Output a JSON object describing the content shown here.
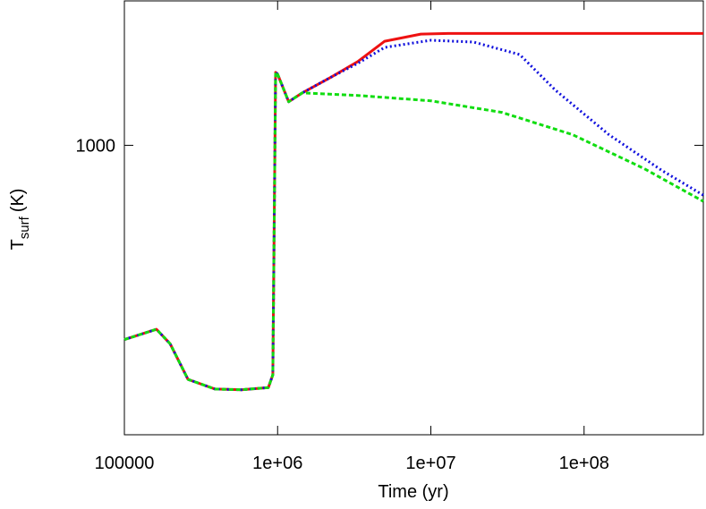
{
  "chart_data": {
    "type": "line",
    "xlabel": "Time (yr)",
    "ylabel_main": "T",
    "ylabel_sub": "surf",
    "ylabel_unit": "(K)",
    "xlog": true,
    "ylog": true,
    "xlim": [
      100000,
      600000000
    ],
    "ylim": [
      190,
      2290
    ],
    "xticks": [
      100000,
      {
        "value": 1000000,
        "label": "1e+06"
      },
      {
        "value": 10000000,
        "label": "1e+07"
      },
      {
        "value": 100000000,
        "label": "1e+08"
      }
    ],
    "yticks": [
      1000
    ],
    "series": [
      {
        "color": "#ee1111",
        "dash": "none",
        "x": [
          100000,
          162000,
          199000,
          260000,
          390000,
          580000,
          870000,
          930000,
          970000,
          1000000,
          1180000,
          1450000,
          2250000,
          3330000,
          5000000,
          8600000,
          13000000,
          600000000
        ],
        "values": [
          328,
          348,
          320,
          261,
          247,
          246,
          249,
          268,
          1520,
          1505,
          1284,
          1351,
          1481,
          1616,
          1817,
          1893,
          1900,
          1900
        ]
      },
      {
        "color": "#1111dd",
        "dash": "2 3",
        "x": [
          100000,
          162000,
          199000,
          260000,
          390000,
          580000,
          870000,
          930000,
          970000,
          1000000,
          1180000,
          1450000,
          2250000,
          3330000,
          5000000,
          10000000,
          19000000,
          38000000,
          65000000,
          145000000,
          320000000,
          600000000
        ],
        "values": [
          328,
          348,
          320,
          261,
          247,
          246,
          249,
          268,
          1520,
          1505,
          1284,
          1351,
          1481,
          1600,
          1754,
          1827,
          1808,
          1683,
          1372,
          1063,
          867,
          751
        ]
      },
      {
        "color": "#11dd11",
        "dash": "5 3",
        "x": [
          100000,
          162000,
          199000,
          260000,
          390000,
          580000,
          870000,
          930000,
          970000,
          1000000,
          1180000,
          1450000,
          3330000,
          10000000,
          29000000,
          84000000,
          246000000,
          600000000
        ],
        "values": [
          328,
          348,
          320,
          261,
          247,
          246,
          249,
          268,
          1520,
          1505,
          1284,
          1351,
          1331,
          1291,
          1208,
          1063,
          875,
          725
        ]
      }
    ]
  }
}
